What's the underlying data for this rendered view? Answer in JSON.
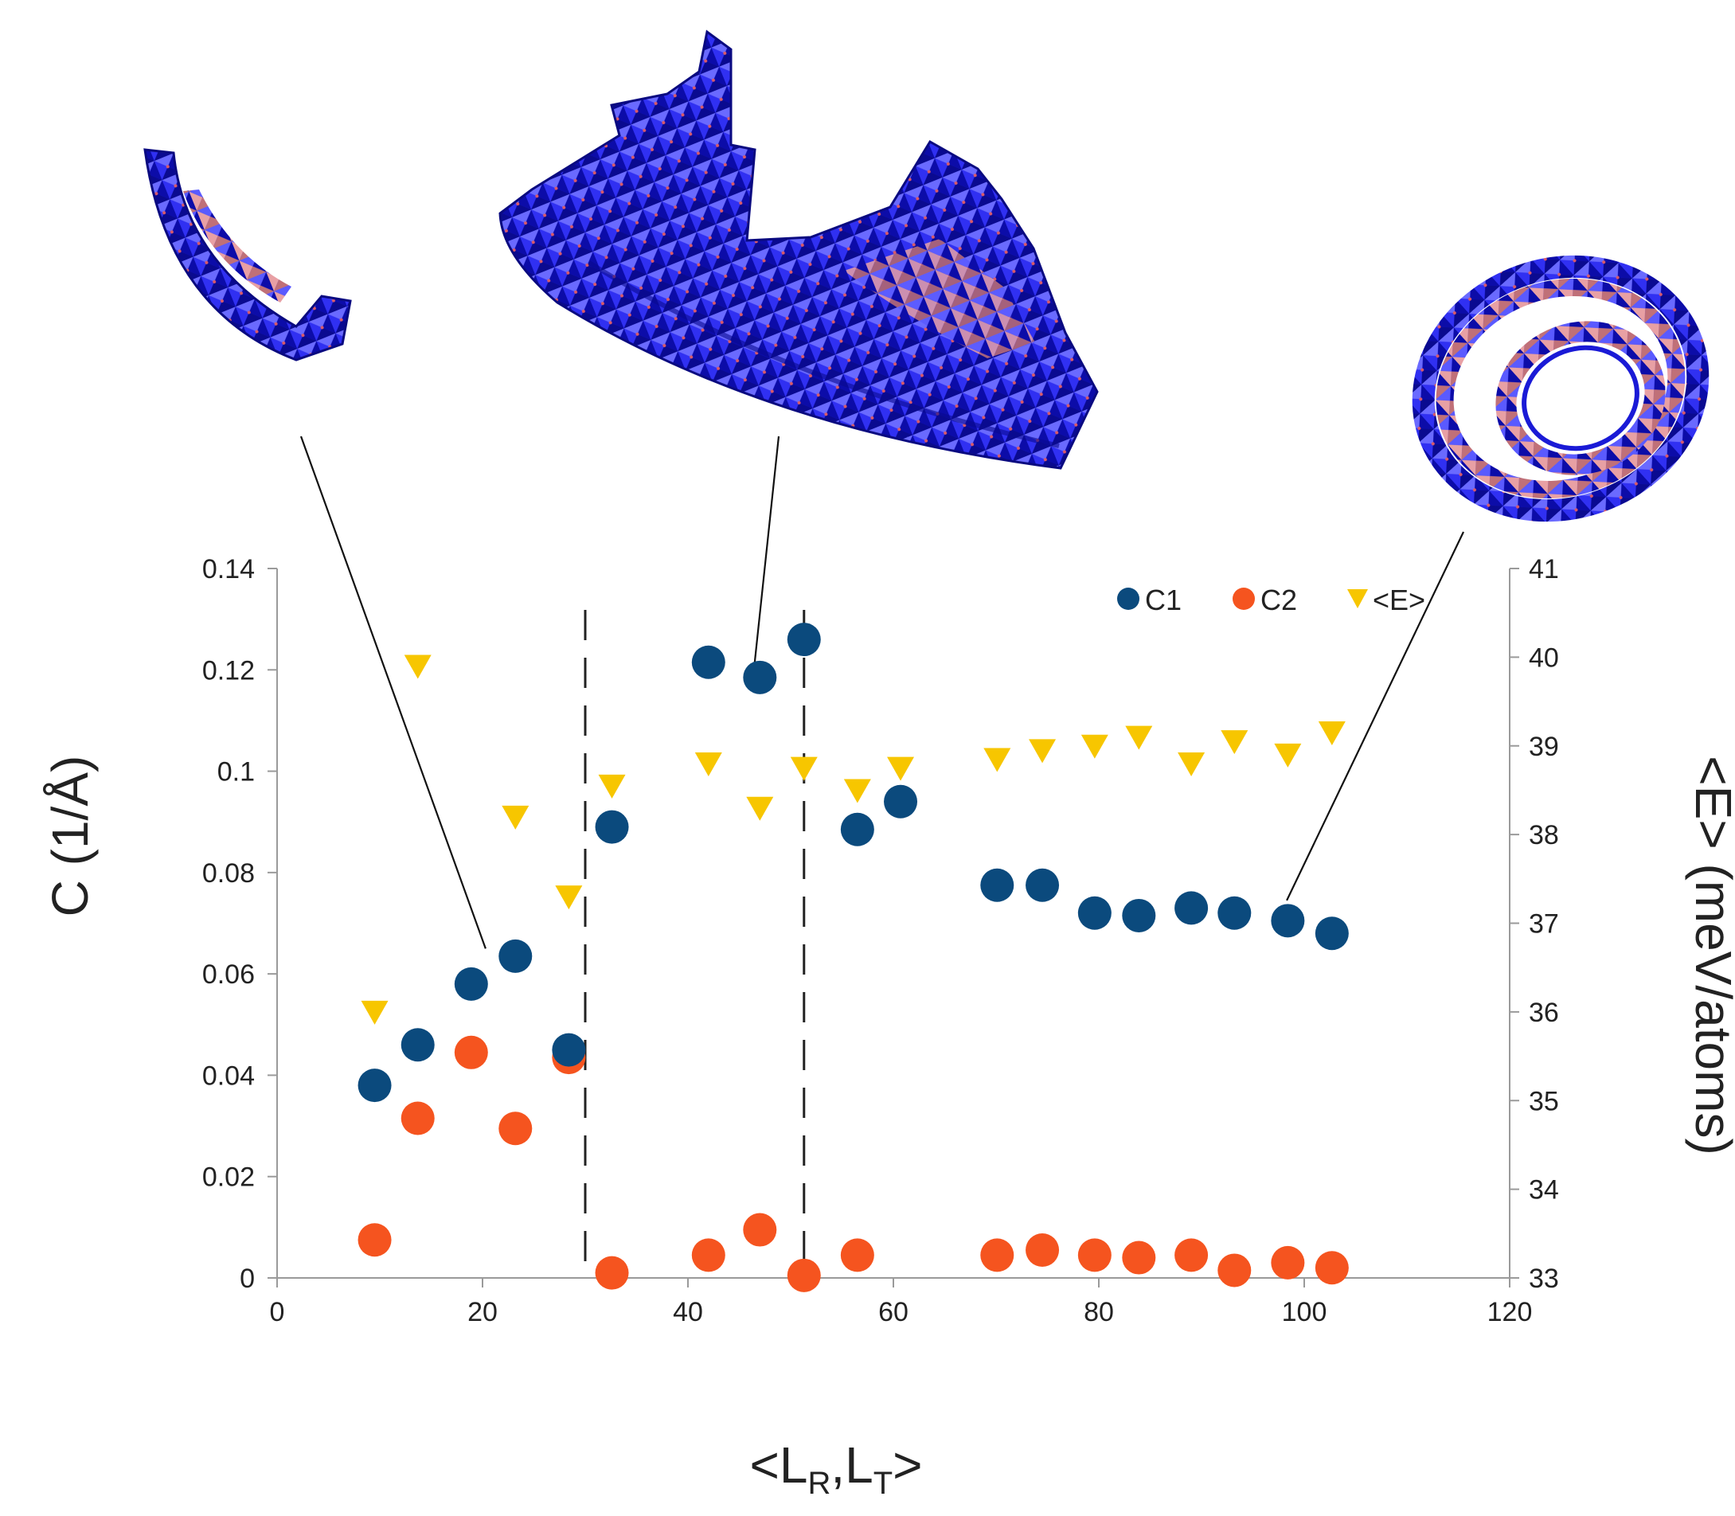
{
  "chart_data": {
    "type": "scatter",
    "title": "",
    "xlabel_main": "<L",
    "xlabel_sub_r": "R",
    "xlabel_sep": ",L",
    "xlabel_sub_t": "T",
    "xlabel_end": ">",
    "ylabel_left": "C (1/Å)",
    "ylabel_right": "<E> (meV/atoms)",
    "xlim": [
      0,
      120
    ],
    "ylim_left": [
      0,
      0.14
    ],
    "ylim_right": [
      33,
      41
    ],
    "x_ticks": [
      "0",
      "20",
      "40",
      "60",
      "80",
      "100",
      "120"
    ],
    "y_left_ticks": [
      "0",
      "0.02",
      "0.04",
      "0.06",
      "0.08",
      "0.1",
      "0.12",
      "0.14"
    ],
    "y_right_ticks": [
      "33",
      "34",
      "35",
      "36",
      "37",
      "38",
      "39",
      "40",
      "41"
    ],
    "legend_position": "top-right",
    "vertical_dashed_lines_x": [
      30,
      51.3
    ],
    "series": [
      {
        "name": "C1",
        "axis": "left",
        "marker": "circle",
        "color": "#0b4a7d",
        "points": [
          [
            9.5,
            0.038
          ],
          [
            13.7,
            0.046
          ],
          [
            18.9,
            0.058
          ],
          [
            23.2,
            0.0635
          ],
          [
            28.4,
            0.045
          ],
          [
            32.6,
            0.089
          ],
          [
            42,
            0.1215
          ],
          [
            47,
            0.1185
          ],
          [
            51.3,
            0.126
          ],
          [
            56.5,
            0.0885
          ],
          [
            60.7,
            0.094
          ],
          [
            70.1,
            0.0775
          ],
          [
            74.5,
            0.0775
          ],
          [
            79.6,
            0.072
          ],
          [
            83.9,
            0.0715
          ],
          [
            89,
            0.073
          ],
          [
            93.2,
            0.072
          ],
          [
            98.4,
            0.0705
          ],
          [
            102.7,
            0.068
          ]
        ]
      },
      {
        "name": "C2",
        "axis": "left",
        "marker": "circle",
        "color": "#f5541f",
        "points": [
          [
            9.5,
            0.0075
          ],
          [
            13.7,
            0.0315
          ],
          [
            18.9,
            0.0445
          ],
          [
            23.2,
            0.0295
          ],
          [
            28.4,
            0.0435
          ],
          [
            32.6,
            0.001
          ],
          [
            42,
            0.0045
          ],
          [
            47,
            0.0095
          ],
          [
            51.3,
            0.0005
          ],
          [
            56.5,
            0.0045
          ],
          [
            70.1,
            0.0045
          ],
          [
            74.5,
            0.0055
          ],
          [
            79.6,
            0.0045
          ],
          [
            83.9,
            0.004
          ],
          [
            89,
            0.0045
          ],
          [
            93.2,
            0.0015
          ],
          [
            98.4,
            0.003
          ],
          [
            102.7,
            0.002
          ]
        ]
      },
      {
        "name": "<E>",
        "axis": "right",
        "marker": "triangle-down",
        "color": "#f7c600",
        "points": [
          [
            9.5,
            36
          ],
          [
            13.7,
            39.9
          ],
          [
            23.2,
            38.2
          ],
          [
            28.4,
            37.3
          ],
          [
            32.6,
            38.55
          ],
          [
            42,
            38.8
          ],
          [
            47,
            38.3
          ],
          [
            51.3,
            38.75
          ],
          [
            56.5,
            38.5
          ],
          [
            60.7,
            38.75
          ],
          [
            70.1,
            38.85
          ],
          [
            74.5,
            38.95
          ],
          [
            79.6,
            39
          ],
          [
            83.9,
            39.1
          ],
          [
            89,
            38.8
          ],
          [
            93.2,
            39.05
          ],
          [
            98.4,
            38.9
          ],
          [
            102.7,
            39.15
          ]
        ]
      }
    ],
    "annotations": [
      {
        "name": "curved-sheet-fragment",
        "x": 20.3,
        "y": 0.065,
        "axis": "left"
      },
      {
        "name": "wide-folded-sheet",
        "x": 46.5,
        "y": 0.1215,
        "axis": "left"
      },
      {
        "name": "rolled-nanotube",
        "x": 98.3,
        "y": 0.0745,
        "axis": "left"
      }
    ]
  }
}
